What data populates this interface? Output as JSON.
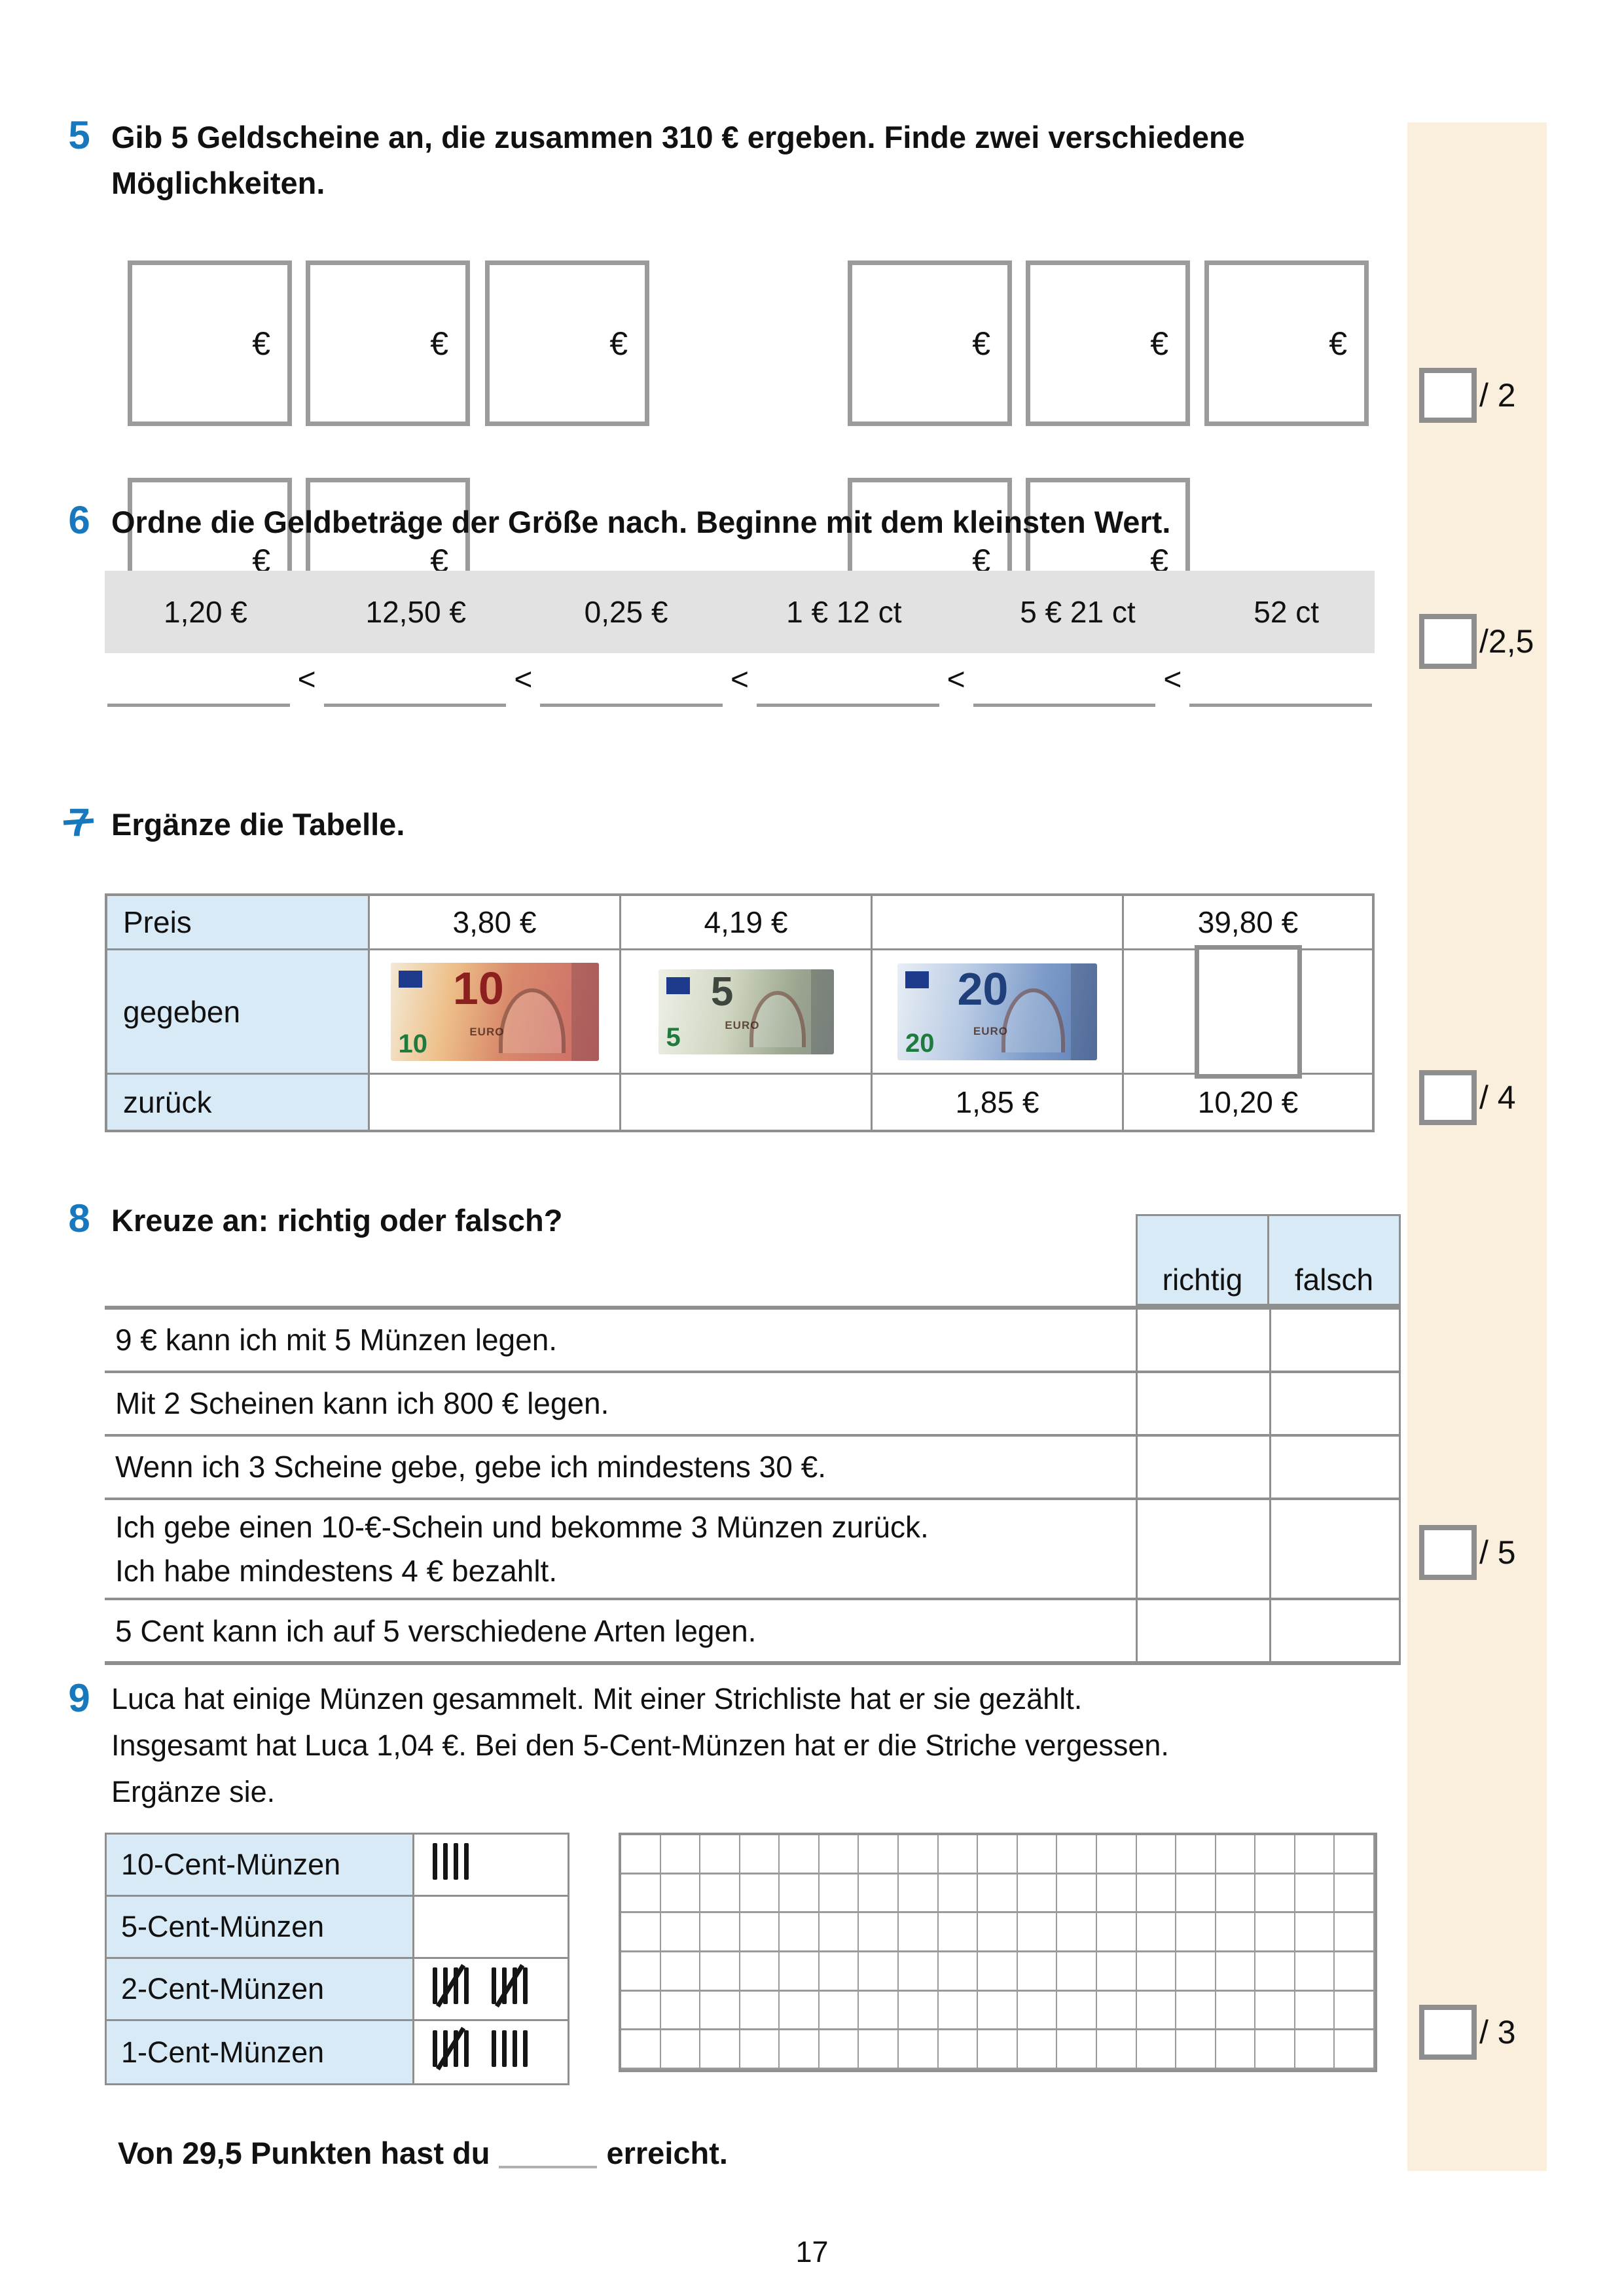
{
  "tasks": {
    "t5": {
      "number": "5",
      "heading_line1": "Gib 5 Geldscheine an, die zusammen 310 € ergeben. Finde zwei verschiedene",
      "heading_line2": "Möglichkeiten.",
      "currency": "€"
    },
    "t6": {
      "number": "6",
      "heading": "Ordne die Geldbeträge der Größe nach. Beginne mit dem kleinsten Wert.",
      "values": [
        "1,20 €",
        "12,50 €",
        "0,25 €",
        "1 € 12 ct",
        "5 € 21 ct",
        "52 ct"
      ],
      "separator": "<"
    },
    "t7": {
      "number": "7",
      "heading": "Ergänze die Tabelle.",
      "row_labels": [
        "Preis",
        "gegeben",
        "zurück"
      ],
      "price": [
        "3,80 €",
        "4,19 €",
        "",
        "39,80 €"
      ],
      "notes": [
        {
          "value": "10",
          "euro_text": "EURO"
        },
        {
          "value": "5",
          "euro_text": "EURO"
        },
        {
          "value": "20",
          "euro_text": "EURO"
        }
      ],
      "back": [
        "",
        "",
        "1,85 €",
        "10,20 €"
      ]
    },
    "t8": {
      "number": "8",
      "heading": "Kreuze an: richtig oder falsch?",
      "col_headers": [
        "richtig",
        "falsch"
      ],
      "statements": [
        {
          "line1": "9 € kann ich mit 5 Münzen legen."
        },
        {
          "line1": "Mit 2 Scheinen kann ich 800 € legen."
        },
        {
          "line1": "Wenn ich 3 Scheine gebe, gebe ich mindestens 30 €."
        },
        {
          "line1": "Ich gebe einen 10-€-Schein und bekomme 3 Münzen zurück.",
          "line2": "Ich habe mindestens 4 € bezahlt."
        },
        {
          "line1": "5 Cent kann ich auf 5 verschiedene Arten legen."
        }
      ]
    },
    "t9": {
      "number": "9",
      "heading_line1": "Luca hat einige Münzen gesammelt. Mit einer Strichliste hat er sie gezählt.",
      "heading_line2": "Insgesamt hat Luca 1,04 €. Bei den 5-Cent-Münzen hat er die Striche vergessen.",
      "heading_line3": "Ergänze sie.",
      "rows": [
        {
          "label": "10-Cent-Münzen",
          "tally": 4
        },
        {
          "label": "5-Cent-Münzen",
          "tally": 0
        },
        {
          "label": "2-Cent-Münzen",
          "tally": 10
        },
        {
          "label": "1-Cent-Münzen",
          "tally": 9
        }
      ],
      "grid": {
        "cols": 19,
        "rows": 6
      }
    }
  },
  "scores": [
    {
      "label": "/ 2"
    },
    {
      "label": "/2,5"
    },
    {
      "label": "/ 4"
    },
    {
      "label": "/ 5"
    },
    {
      "label": "/ 3"
    }
  ],
  "footer": {
    "prefix": "Von 29,5 Punkten hast du",
    "suffix": "erreicht.",
    "page_number": "17"
  },
  "colors": {
    "accent_blue": "#1878be",
    "header_blue": "#d9eaf7",
    "sidebar_beige": "#faeedd",
    "band_gray": "#e2e2e2"
  }
}
